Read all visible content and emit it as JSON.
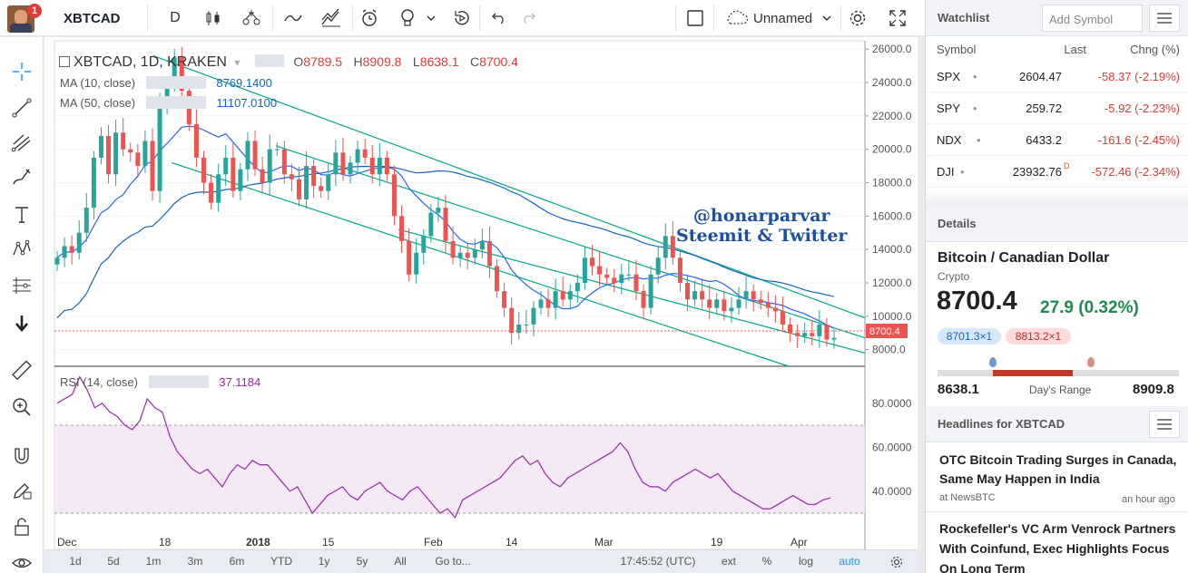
{
  "topbar": {
    "notification_count": "1",
    "symbol": "XBTCAD",
    "interval": "D",
    "layout_name": "Unnamed"
  },
  "legend": {
    "title": "XBTCAD, 1D, KRAKEN",
    "o_label": "O",
    "o_value": "8789.5",
    "h_label": "H",
    "h_value": "8909.8",
    "l_label": "L",
    "l_value": "8638.1",
    "c_label": "C",
    "c_value": "8700.4",
    "ma10_label": "MA (10, close)",
    "ma10_value": "8769.1400",
    "ma50_label": "MA (50, close)",
    "ma50_value": "11107.0100",
    "rsi_label": "RSI (14, close)",
    "rsi_value": "37.1184"
  },
  "watermark": {
    "line1": "@honarparvar",
    "line2": "Steemit & Twitter"
  },
  "price_axis": [
    "26000.0",
    "24000.0",
    "22000.0",
    "20000.0",
    "18000.0",
    "16000.0",
    "14000.0",
    "12000.0",
    "10000.0",
    "8000.0"
  ],
  "last_price_tag": "8700.4",
  "rsi_axis": [
    "80.0000",
    "60.0000",
    "40.0000"
  ],
  "time_axis": [
    "Dec",
    "18",
    "2018",
    "15",
    "Feb",
    "14",
    "Mar",
    "19",
    "Apr"
  ],
  "bottombar": {
    "ranges": [
      "1d",
      "5d",
      "1m",
      "3m",
      "6m",
      "YTD",
      "1y",
      "5y",
      "All"
    ],
    "goto": "Go to...",
    "time": "17:45:52 (UTC)",
    "ext": "ext",
    "pct": "%",
    "log": "log",
    "auto": "auto"
  },
  "watchlist": {
    "title": "Watchlist",
    "add_placeholder": "Add Symbol",
    "col_symbol": "Symbol",
    "col_last": "Last",
    "col_change": "Chng (%)",
    "rows": [
      {
        "symbol": "SPX",
        "last": "2604.47",
        "change": "-58.37 (-2.19%)"
      },
      {
        "symbol": "SPY",
        "last": "259.72",
        "change": "-5.92 (-2.23%)"
      },
      {
        "symbol": "NDX",
        "last": "6433.2",
        "change": "-161.6 (-2.45%)"
      },
      {
        "symbol": "DJI",
        "last": "23932.76",
        "change": "-572.46 (-2.34%)",
        "flag": "D"
      }
    ]
  },
  "details": {
    "title": "Details",
    "name": "Bitcoin / Canadian Dollar",
    "type": "Crypto",
    "price": "8700.4",
    "change": "27.9 (0.32%)",
    "bid": "8701.3×1",
    "ask": "8813.2×1",
    "range_low": "8638.1",
    "range_label": "Day's Range",
    "range_high": "8909.8"
  },
  "headlines": {
    "title": "Headlines for XBTCAD",
    "items": [
      {
        "title": "OTC Bitcoin Trading Surges in Canada, Same May Happen in India",
        "source": "at NewsBTC",
        "time": "an hour ago"
      },
      {
        "title": "Rockefeller's VC Arm Venrock Partners With Coinfund, Exec Highlights Focus On Long Term",
        "source": "",
        "time": ""
      }
    ]
  },
  "colors": {
    "up": "#26a69a",
    "down": "#ef5350",
    "ma10": "#2962ff",
    "ma50": "#1565c0",
    "channel": "#00a88a",
    "rsi": "#9c27b0",
    "watermark": "#1a4fa3"
  },
  "chart_data": {
    "type": "candlestick",
    "symbol": "XBTCAD",
    "timeframe": "1D",
    "exchange": "KRAKEN",
    "x_ticks": [
      "Dec",
      "18",
      "2018",
      "15",
      "Feb",
      "14",
      "Mar",
      "19",
      "Apr"
    ],
    "ylim": [
      7000,
      26500
    ],
    "close_approx": [
      13500,
      14200,
      13800,
      15000,
      16500,
      19500,
      20800,
      18500,
      21000,
      20000,
      19800,
      19000,
      20500,
      17500,
      22500,
      24000,
      25500,
      23500,
      21500,
      19500,
      18000,
      16800,
      18500,
      19500,
      17500,
      18800,
      20500,
      18800,
      18000,
      20000,
      20000,
      18500,
      18200,
      17000,
      19000,
      17800,
      17500,
      18500,
      19800,
      18500,
      19200,
      20000,
      19500,
      18500,
      19500,
      18500,
      16000,
      14500,
      12500,
      13800,
      14800,
      16200,
      16500,
      14500,
      13500,
      13800,
      13500,
      14000,
      14500,
      13000,
      11500,
      10500,
      9000,
      9500,
      9500,
      10500,
      11000,
      10500,
      11500,
      11000,
      11500,
      12000,
      13500,
      13000,
      12500,
      12300,
      12000,
      12500,
      12500,
      11500,
      10500,
      12500,
      13500,
      14800,
      13500,
      12000,
      11000,
      11500,
      11000,
      10500,
      11000,
      10300,
      10500,
      11000,
      11500,
      11000,
      10800,
      10500,
      10300,
      9500,
      9000,
      8800,
      9000,
      8800,
      9500,
      8600,
      8700
    ],
    "rsi_approx": [
      80,
      82,
      84,
      92,
      86,
      78,
      80,
      76,
      74,
      70,
      68,
      72,
      82,
      78,
      76,
      65,
      58,
      54,
      50,
      48,
      50,
      46,
      42,
      48,
      52,
      50,
      54,
      52,
      52,
      48,
      44,
      40,
      42,
      36,
      30,
      34,
      38,
      40,
      42,
      38,
      36,
      40,
      42,
      44,
      40,
      38,
      36,
      40,
      42,
      38,
      34,
      30,
      32,
      28,
      36,
      38,
      40,
      42,
      44,
      46,
      50,
      54,
      56,
      52,
      54,
      48,
      44,
      42,
      46,
      48,
      50,
      52,
      54,
      56,
      58,
      62,
      58,
      50,
      44,
      42,
      42,
      40,
      44,
      46,
      48,
      50,
      48,
      46,
      48,
      44,
      40,
      38,
      36,
      34,
      32,
      32,
      34,
      36,
      38,
      36,
      34,
      34,
      36,
      37
    ]
  }
}
